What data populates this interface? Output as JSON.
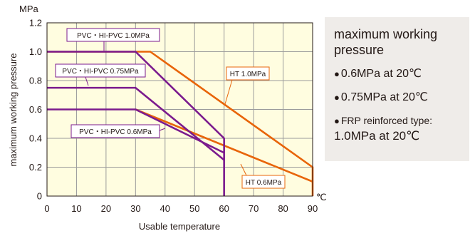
{
  "chart_data": {
    "type": "line",
    "ylabel": "maximum working pressure",
    "yunit": "MPa",
    "xlabel": "Usable temperature",
    "xunit": "℃",
    "xlim": [
      0,
      90
    ],
    "ylim": [
      0,
      1.2
    ],
    "xticks": [
      "0",
      "10",
      "20",
      "30",
      "40",
      "50",
      "60",
      "70",
      "80",
      "90"
    ],
    "yticks": [
      "0",
      "0.2",
      "0.4",
      "0.6",
      "0.8",
      "1.0",
      "1.2"
    ],
    "grid": true,
    "colors": {
      "pvc": "#7b1b8e",
      "ht": "#e8650a",
      "background": "#fffde0"
    },
    "series": [
      {
        "name": "PVC・HI-PVC  1.0MPa",
        "group": "pvc",
        "x": [
          0,
          30,
          60,
          60
        ],
        "y": [
          1.0,
          1.0,
          0.4,
          0
        ]
      },
      {
        "name": "PVC・HI-PVC  0.75MPa",
        "group": "pvc",
        "x": [
          0,
          30,
          60
        ],
        "y": [
          0.75,
          0.75,
          0.25
        ]
      },
      {
        "name": "PVC・HI-PVC  0.6MPa",
        "group": "pvc",
        "x": [
          0,
          30,
          60
        ],
        "y": [
          0.6,
          0.6,
          0.3
        ]
      },
      {
        "name": "HT 1.0MPa",
        "group": "ht",
        "x": [
          0,
          35,
          90,
          90
        ],
        "y": [
          1.0,
          1.0,
          0.2,
          0
        ]
      },
      {
        "name": "HT 0.6MPa",
        "group": "ht",
        "x": [
          30,
          90
        ],
        "y": [
          0.6,
          0.1
        ]
      }
    ]
  },
  "info": {
    "title": "maximum working pressure",
    "items": [
      "0.6MPa at 20℃",
      "0.75MPa at 20℃"
    ],
    "frp_label": "FRP reinforced type:",
    "frp_value": "1.0MPa at 20℃",
    "bullet": "●"
  }
}
